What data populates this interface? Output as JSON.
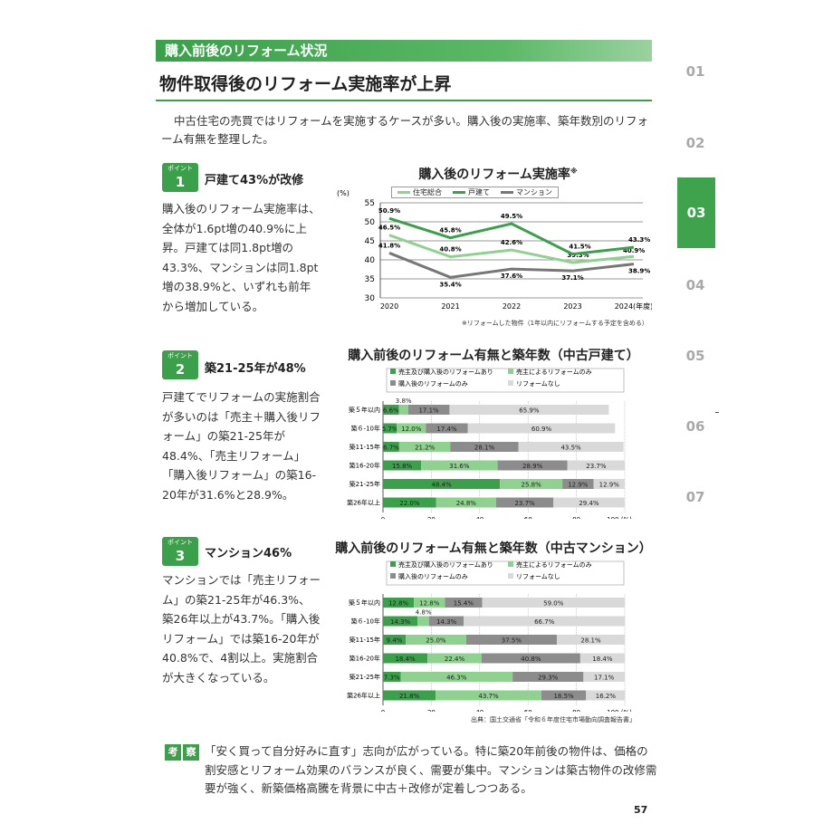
{
  "section_label": "購入前後のリフォーム状況",
  "headline": "物件取得後のリフォーム実施率が上昇",
  "intro": "中古住宅の売買ではリフォームを実施するケースが多い。購入後の実施率、築年数別のリフォーム有無を整理した。",
  "nav": {
    "items": [
      "01",
      "02",
      "03",
      "04",
      "05",
      "06",
      "07"
    ],
    "active": "03"
  },
  "points": [
    {
      "badge_small": "ポイント",
      "badge_num": "1",
      "title": "戸建て43%が改修",
      "body": "購入後のリフォーム実施率は、全体が1.6pt増の40.9%に上昇。戸建ては同1.8pt増の43.3%、マンションは同1.8pt増の38.9%と、いずれも前年から増加している。"
    },
    {
      "badge_small": "ポイント",
      "badge_num": "2",
      "title": "築21-25年が48%",
      "body": "戸建てでリフォームの実施割合が多いのは「売主＋購入後リフォーム」の築21-25年が48.4%、「売主リフォーム」「購入後リフォーム」の築16-20年が31.6%と28.9%。"
    },
    {
      "badge_small": "ポイント",
      "badge_num": "3",
      "title": "マンション46%",
      "body": "マンションでは「売主リフォーム」の築21-25年が46.3%、築26年以上が43.7%。「購入後リフォーム」では築16-20年が40.8%で、4割以上。実施割合が大きくなっている。"
    }
  ],
  "colors": {
    "accent": "#3aa04a",
    "light_green": "#8fd18f",
    "dark_gray": "#8c8c8c",
    "light_gray": "#d9d9d9",
    "line_gray": "#777777"
  },
  "chart_data": [
    {
      "type": "line",
      "title": "購入後のリフォーム実施率",
      "title_mark": "※",
      "ylabel": "(%)",
      "xlabel_suffix": "(年度)",
      "x": [
        "2020",
        "2021",
        "2022",
        "2023",
        "2024"
      ],
      "ylim": [
        30,
        55
      ],
      "yticks": [
        30,
        35,
        40,
        45,
        50,
        55
      ],
      "series": [
        {
          "name": "住宅総合",
          "values": [
            46.5,
            40.8,
            42.6,
            39.3,
            40.9
          ],
          "labels": [
            "46.5%",
            "40.8%",
            "42.6%",
            "39.3%",
            "40.9%"
          ]
        },
        {
          "name": "戸建て",
          "values": [
            50.9,
            45.8,
            49.5,
            41.5,
            43.3
          ],
          "labels": [
            "50.9%",
            "45.8%",
            "49.5%",
            "41.5%",
            "43.3%"
          ]
        },
        {
          "name": "マンション",
          "values": [
            41.8,
            35.4,
            37.6,
            37.1,
            38.9
          ],
          "labels": [
            "41.8%",
            "35.4%",
            "37.6%",
            "37.1%",
            "38.9%"
          ]
        }
      ],
      "footnote": "※リフォームした物件（1年以内にリフォームする予定を含める）"
    },
    {
      "type": "bar",
      "stacked": true,
      "orientation": "horizontal",
      "title": "購入前後のリフォーム有無と築年数（中古戸建て）",
      "xlim": [
        0,
        100
      ],
      "xticks": [
        0,
        20,
        40,
        60,
        80,
        100
      ],
      "xunit": "(%)",
      "legend": [
        "売主及び購入後のリフォームあり",
        "売主によるリフォームのみ",
        "購入後のリフォームのみ",
        "リフォームなし"
      ],
      "categories": [
        "築５年以内",
        "築６-10年",
        "築11-15年",
        "築16-20年",
        "築21-25年",
        "築26年以上"
      ],
      "series": [
        {
          "name": "売主及び購入後のリフォームあり",
          "values": [
            6.6,
            5.7,
            6.7,
            15.8,
            48.4,
            22.0
          ]
        },
        {
          "name": "売主によるリフォームのみ",
          "values": [
            3.8,
            12.0,
            21.2,
            31.6,
            25.8,
            24.8
          ]
        },
        {
          "name": "購入後のリフォームのみ",
          "values": [
            17.1,
            17.4,
            28.1,
            28.9,
            12.9,
            23.7
          ]
        },
        {
          "name": "リフォームなし",
          "values": [
            65.9,
            60.9,
            43.5,
            23.7,
            12.9,
            29.4
          ]
        }
      ],
      "labels": [
        [
          "6.6%",
          "3.8%",
          "17.1%",
          "65.9%"
        ],
        [
          "5.7%",
          "12.0%",
          "17.4%",
          "60.9%"
        ],
        [
          "6.7%",
          "21.2%",
          "28.1%",
          "43.5%"
        ],
        [
          "15.8%",
          "31.6%",
          "28.9%",
          "23.7%"
        ],
        [
          "48.4%",
          "25.8%",
          "12.9%",
          "12.9%"
        ],
        [
          "22.0%",
          "24.8%",
          "23.7%",
          "29.4%"
        ]
      ]
    },
    {
      "type": "bar",
      "stacked": true,
      "orientation": "horizontal",
      "title": "購入前後のリフォーム有無と築年数（中古マンション）",
      "xlim": [
        0,
        100
      ],
      "xticks": [
        0,
        20,
        40,
        60,
        80,
        100
      ],
      "xunit": "(%)",
      "legend": [
        "売主及び購入後のリフォームあり",
        "売主によるリフォームのみ",
        "購入後のリフォームのみ",
        "リフォームなし"
      ],
      "categories": [
        "築５年以内",
        "築６-10年",
        "築11-15年",
        "築16-20年",
        "築21-25年",
        "築26年以上"
      ],
      "series": [
        {
          "name": "売主及び購入後のリフォームあり",
          "values": [
            12.8,
            14.3,
            9.4,
            18.4,
            7.3,
            21.8
          ]
        },
        {
          "name": "売主によるリフォームのみ",
          "values": [
            12.8,
            4.8,
            25.0,
            22.4,
            46.3,
            43.7
          ]
        },
        {
          "name": "購入後のリフォームのみ",
          "values": [
            15.4,
            14.3,
            37.5,
            40.8,
            29.3,
            18.5
          ]
        },
        {
          "name": "リフォームなし",
          "values": [
            59.0,
            66.7,
            28.1,
            18.4,
            17.1,
            16.2
          ]
        }
      ],
      "labels": [
        [
          "12.8%",
          "12.8%",
          "15.4%",
          "59.0%"
        ],
        [
          "14.3%",
          "4.8%",
          "14.3%",
          "66.7%"
        ],
        [
          "9.4%",
          "25.0%",
          "37.5%",
          "28.1%"
        ],
        [
          "18.4%",
          "22.4%",
          "40.8%",
          "18.4%"
        ],
        [
          "7.3%",
          "46.3%",
          "29.3%",
          "17.1%"
        ],
        [
          "21.8%",
          "43.7%",
          "18.5%",
          "16.2%"
        ]
      ]
    }
  ],
  "source": "出典：国土交通省「令和６年度住宅市場動向調査報告書」",
  "conclusion_labels": [
    "考",
    "察"
  ],
  "conclusion": "「安く買って自分好みに直す」志向が広がっている。特に築20年前後の物件は、価格の割安感とリフォーム効果のバランスが良く、需要が集中。マンションは築古物件の改修需要が強く、新築価格高騰を背景に中古＋改修が定着しつつある。",
  "page_number": "57"
}
